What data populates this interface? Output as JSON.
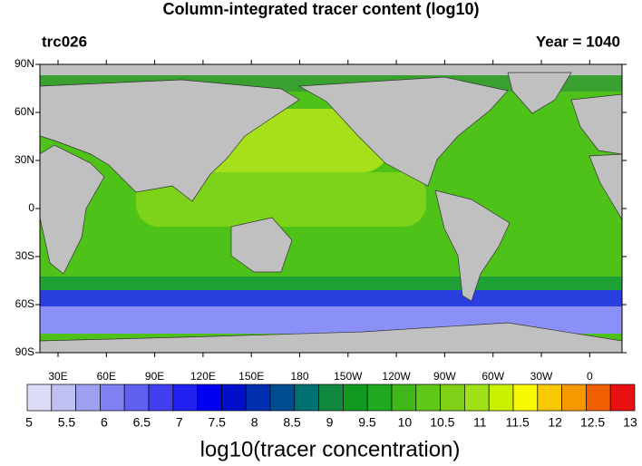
{
  "title": "Column-integrated tracer content (log10)",
  "left_label": "trc026",
  "right_label": "Year = 1040",
  "lat_labels": [
    "90N",
    "60N",
    "30N",
    "0",
    "30S",
    "60S",
    "90S"
  ],
  "lon_labels": [
    "30E",
    "60E",
    "90E",
    "120E",
    "150E",
    "180",
    "150W",
    "120W",
    "90W",
    "60W",
    "30W",
    "0"
  ],
  "colorbar": {
    "labels": [
      "5",
      "5.5",
      "6",
      "6.5",
      "7",
      "7.5",
      "8",
      "8.5",
      "9",
      "9.5",
      "10",
      "10.5",
      "11",
      "11.5",
      "12",
      "12.5",
      "13"
    ],
    "colors": [
      "#dcdcf8",
      "#c0c0f5",
      "#a0a0f0",
      "#8080f0",
      "#6060f0",
      "#4040f0",
      "#2020f0",
      "#0000f0",
      "#0010c8",
      "#0030b0",
      "#004c90",
      "#007070",
      "#108840",
      "#109a20",
      "#20a820",
      "#40b818",
      "#60c818",
      "#80d018",
      "#a0e018",
      "#c8f000",
      "#f8f800",
      "#f8c800",
      "#f89800",
      "#f06000",
      "#e81010"
    ],
    "title": "log10(tracer concentration)"
  }
}
